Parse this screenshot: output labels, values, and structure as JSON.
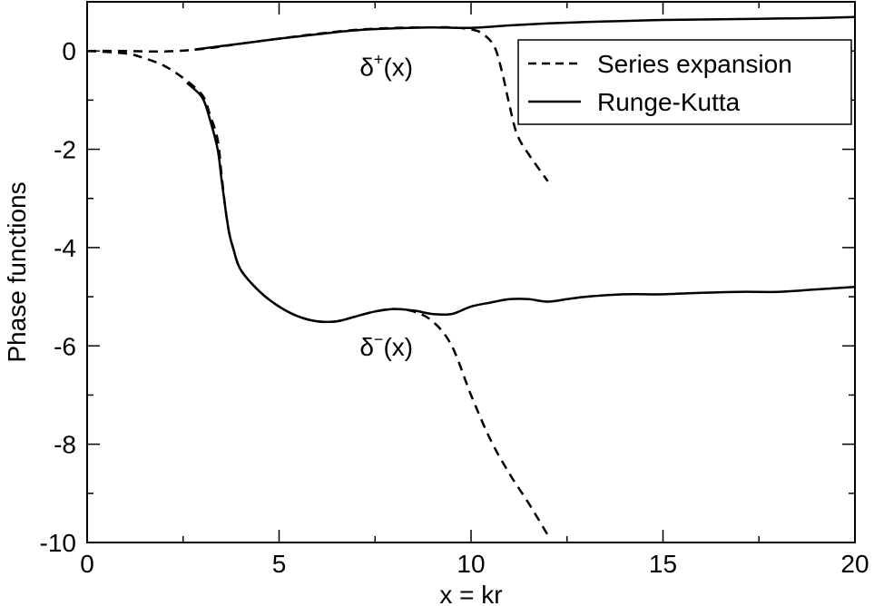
{
  "chart_data": {
    "type": "line",
    "title": "",
    "xlabel": "x = kr",
    "ylabel": "Phase functions",
    "xlim": [
      0,
      20
    ],
    "ylim": [
      -10,
      1
    ],
    "x_major_ticks": [
      0,
      5,
      10,
      15,
      20
    ],
    "x_tick_labels": [
      "0",
      "5",
      "10",
      "15",
      "20"
    ],
    "x_minor_ticks": [
      2.5,
      7.5,
      12.5,
      17.5
    ],
    "y_major_ticks": [
      0,
      -2,
      -4,
      -6,
      -8,
      -10
    ],
    "y_tick_labels": [
      "0",
      "-2",
      "-4",
      "-6",
      "-8",
      "-10"
    ],
    "y_minor_ticks": [
      -1,
      -3,
      -5,
      -7,
      -9
    ],
    "grid": false,
    "legend": {
      "position": "top-right",
      "entries": [
        {
          "label": "Series expansion",
          "style": "dashed"
        },
        {
          "label": "Runge-Kutta",
          "style": "solid"
        }
      ]
    },
    "annotations": [
      {
        "base": "δ",
        "sup": "+",
        "suffix": "(x)",
        "x": 7.1,
        "y": -0.5
      },
      {
        "base": "δ",
        "sup": "−",
        "suffix": "(x)",
        "x": 7.1,
        "y": -6.2
      }
    ],
    "series": [
      {
        "name": "Series expansion",
        "style": "dashed",
        "curve": "delta+",
        "points": [
          [
            0,
            0
          ],
          [
            1,
            0
          ],
          [
            2,
            -0.01
          ],
          [
            3,
            0.04
          ],
          [
            4,
            0.15
          ],
          [
            5,
            0.25
          ],
          [
            6,
            0.35
          ],
          [
            7,
            0.43
          ],
          [
            8,
            0.47
          ],
          [
            9,
            0.48
          ],
          [
            9.5,
            0.48
          ],
          [
            10,
            0.44
          ],
          [
            10.3,
            0.35
          ],
          [
            10.6,
            0.1
          ],
          [
            10.8,
            -0.4
          ],
          [
            11,
            -1.1
          ],
          [
            11.2,
            -1.7
          ],
          [
            11.5,
            -2.1
          ],
          [
            12,
            -2.65
          ]
        ]
      },
      {
        "name": "Runge-Kutta",
        "style": "solid",
        "curve": "delta+",
        "points": [
          [
            2.8,
            0.03
          ],
          [
            4,
            0.15
          ],
          [
            5,
            0.25
          ],
          [
            6,
            0.34
          ],
          [
            7,
            0.42
          ],
          [
            8,
            0.46
          ],
          [
            9,
            0.48
          ],
          [
            10,
            0.47
          ],
          [
            11,
            0.52
          ],
          [
            12,
            0.56
          ],
          [
            13,
            0.59
          ],
          [
            14,
            0.61
          ],
          [
            15,
            0.63
          ],
          [
            16,
            0.64
          ],
          [
            17,
            0.65
          ],
          [
            18,
            0.66
          ],
          [
            19,
            0.67
          ],
          [
            20,
            0.69
          ]
        ]
      },
      {
        "name": "Series expansion",
        "style": "dashed",
        "curve": "delta-",
        "points": [
          [
            0,
            0
          ],
          [
            1,
            -0.05
          ],
          [
            1.5,
            -0.15
          ],
          [
            2,
            -0.3
          ],
          [
            2.5,
            -0.55
          ],
          [
            3,
            -0.9
          ],
          [
            3.2,
            -1.3
          ],
          [
            3.4,
            -1.8
          ],
          [
            3.5,
            -2.5
          ],
          [
            3.6,
            -3.2
          ],
          [
            3.7,
            -3.7
          ],
          [
            3.8,
            -4.0
          ],
          [
            4,
            -4.45
          ],
          [
            4.5,
            -4.9
          ],
          [
            5,
            -5.2
          ],
          [
            5.5,
            -5.4
          ],
          [
            6,
            -5.5
          ],
          [
            6.5,
            -5.5
          ],
          [
            7,
            -5.4
          ],
          [
            7.5,
            -5.3
          ],
          [
            8,
            -5.25
          ],
          [
            8.5,
            -5.3
          ],
          [
            9,
            -5.5
          ],
          [
            9.5,
            -6.0
          ],
          [
            10,
            -7.0
          ],
          [
            10.5,
            -7.9
          ],
          [
            11,
            -8.6
          ],
          [
            11.5,
            -9.2
          ],
          [
            12,
            -9.85
          ]
        ]
      },
      {
        "name": "Runge-Kutta",
        "style": "solid",
        "curve": "delta-",
        "points": [
          [
            2.6,
            -0.65
          ],
          [
            3,
            -0.95
          ],
          [
            3.2,
            -1.4
          ],
          [
            3.4,
            -2.0
          ],
          [
            3.5,
            -2.6
          ],
          [
            3.6,
            -3.2
          ],
          [
            3.7,
            -3.7
          ],
          [
            3.8,
            -4.0
          ],
          [
            4,
            -4.45
          ],
          [
            4.5,
            -4.9
          ],
          [
            5,
            -5.2
          ],
          [
            5.5,
            -5.4
          ],
          [
            6,
            -5.5
          ],
          [
            6.5,
            -5.5
          ],
          [
            7,
            -5.4
          ],
          [
            7.5,
            -5.3
          ],
          [
            8,
            -5.25
          ],
          [
            8.5,
            -5.28
          ],
          [
            9,
            -5.35
          ],
          [
            9.5,
            -5.35
          ],
          [
            10,
            -5.2
          ],
          [
            10.5,
            -5.12
          ],
          [
            11,
            -5.05
          ],
          [
            11.5,
            -5.05
          ],
          [
            12,
            -5.1
          ],
          [
            12.5,
            -5.05
          ],
          [
            13,
            -5.0
          ],
          [
            14,
            -4.95
          ],
          [
            15,
            -4.95
          ],
          [
            16,
            -4.92
          ],
          [
            17,
            -4.9
          ],
          [
            18,
            -4.9
          ],
          [
            19,
            -4.85
          ],
          [
            20,
            -4.8
          ]
        ]
      }
    ]
  }
}
